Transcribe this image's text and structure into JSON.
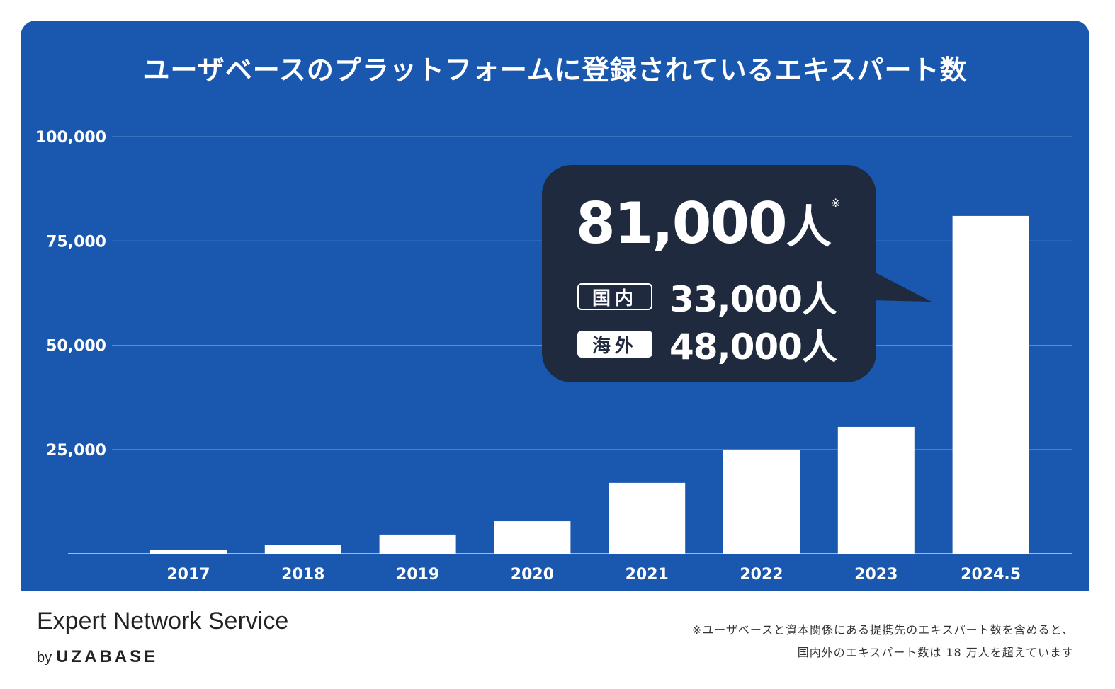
{
  "chart_data": {
    "type": "bar",
    "title": "ユーザベースのプラットフォームに登録されているエキスパート数",
    "categories": [
      "2017",
      "2018",
      "2019",
      "2020",
      "2021",
      "2022",
      "2023",
      "2024.5"
    ],
    "values": [
      850,
      2200,
      4600,
      7800,
      17000,
      24800,
      30400,
      81000
    ],
    "xlabel": "",
    "ylabel": "",
    "ylim": [
      0,
      100000
    ],
    "yticks": [
      25000,
      50000,
      75000,
      100000
    ],
    "ytick_labels": [
      "25,000",
      "50,000",
      "75,000",
      "100,000"
    ],
    "grid": true,
    "colors": {
      "background": "#1a57ae",
      "bar": "#ffffff",
      "callout": "#1f2a3e"
    },
    "callout": {
      "total": "81,000",
      "unit": "人",
      "mark": "※",
      "domestic_label": "国内",
      "domestic_value": "33,000人",
      "overseas_label": "海外",
      "overseas_value": "48,000人"
    }
  },
  "footer": {
    "brand": "Expert Network Service",
    "by": "by",
    "company": "UZABASE",
    "note_line1": "※ユーザベースと資本関係にある提携先のエキスパート数を含めると、",
    "note_line2": "国内外のエキスパート数は 18 万人を超えています"
  }
}
